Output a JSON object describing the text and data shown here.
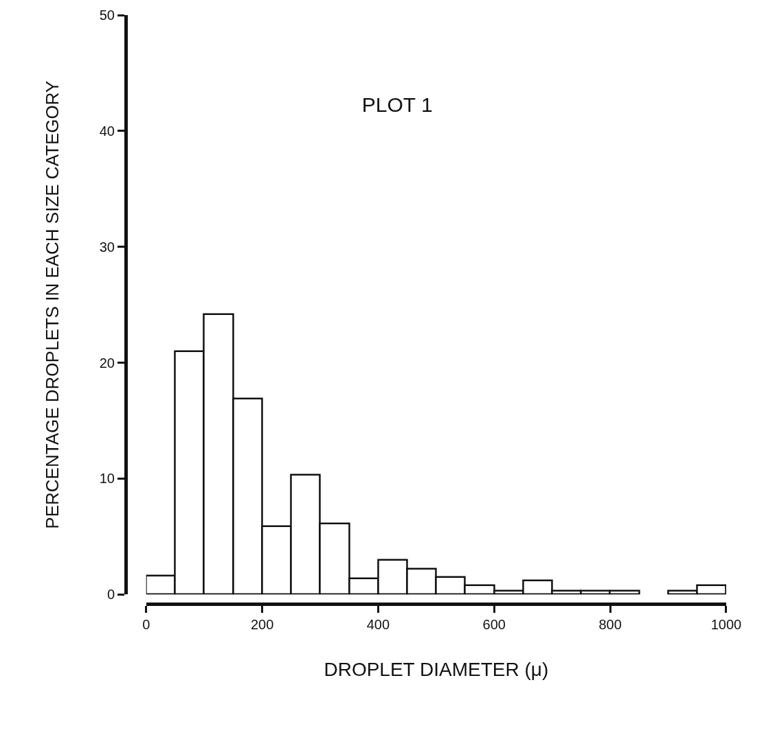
{
  "chart_data": {
    "type": "histogram",
    "title": "PLOT 1",
    "xlabel": "DROPLET DIAMETER (μ)",
    "ylabel": "PERCENTAGE DROPLETS IN EACH SIZE CATEGORY",
    "bins": [
      0,
      50,
      100,
      150,
      200,
      250,
      300,
      350,
      400,
      450,
      500,
      550,
      600,
      650,
      700,
      750,
      800,
      850,
      900,
      950,
      1000
    ],
    "values": [
      1.6,
      21.0,
      24.2,
      16.9,
      5.9,
      10.3,
      6.1,
      1.4,
      3.0,
      2.2,
      1.5,
      0.8,
      0.3,
      1.2,
      0.3,
      0.3,
      0.3,
      null,
      0.3,
      0.8
    ],
    "color": "#ffffff",
    "xlim": [
      0,
      1000
    ],
    "xticks": [
      0,
      200,
      400,
      600,
      800,
      1000
    ],
    "ylim": [
      0,
      50
    ],
    "yticks": [
      0,
      10,
      20,
      30,
      40,
      50
    ]
  }
}
